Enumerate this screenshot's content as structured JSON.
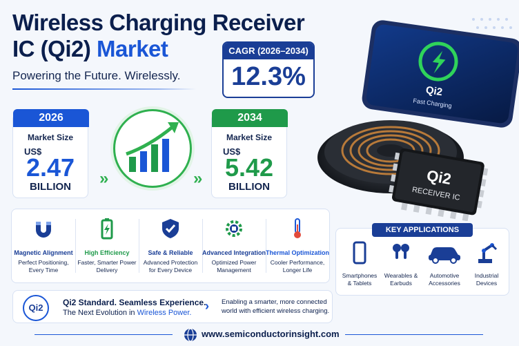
{
  "title": {
    "line1": "Wireless Charging Receiver",
    "line2_a": "IC (Qi2) ",
    "line2_b": "Market"
  },
  "tagline": "Powering the Future. Wirelessly.",
  "cagr": {
    "label": "CAGR (2026–2034)",
    "value": "12.3%"
  },
  "card_2026": {
    "year": "2026",
    "label": "Market Size",
    "currency": "US$",
    "value": "2.47",
    "unit": "BILLION",
    "color": "#1a56d6"
  },
  "card_2034": {
    "year": "2034",
    "label": "Market Size",
    "currency": "US$",
    "value": "5.42",
    "unit": "BILLION",
    "color": "#1f9a4a"
  },
  "phone": {
    "brand": "Qi2",
    "caption": "Fast Charging"
  },
  "chip": {
    "brand": "Qi2",
    "caption": "RECEIVER IC"
  },
  "features": [
    {
      "title": "Magnetic Alignment",
      "desc": "Perfect Positioning, Every Time",
      "color": "#1a3e96",
      "icon": "magnet-icon"
    },
    {
      "title": "High Efficiency",
      "desc": "Faster, Smarter Power Delivery",
      "color": "#1f9a4a",
      "icon": "battery-icon"
    },
    {
      "title": "Safe & Reliable",
      "desc": "Advanced Protection for Every Device",
      "color": "#1a3e96",
      "icon": "shield-check-icon"
    },
    {
      "title": "Advanced Integration",
      "desc": "Optimized Power Management",
      "color": "#1a3e96",
      "icon": "gear-chip-icon"
    },
    {
      "title": "Thermal Optimization",
      "desc": "Cooler Performance, Longer Life",
      "color": "#1a56d6",
      "icon": "thermometer-icon"
    }
  ],
  "applications": {
    "header": "KEY APPLICATIONS",
    "items": [
      {
        "label": "Smartphones & Tablets",
        "icon": "smartphone-icon"
      },
      {
        "label": "Wearables & Earbuds",
        "icon": "earbuds-icon"
      },
      {
        "label": "Automotive Accessories",
        "icon": "car-icon"
      },
      {
        "label": "Industrial Devices",
        "icon": "robot-arm-icon"
      }
    ]
  },
  "standard": {
    "logo": "Qi2",
    "headline": "Qi2 Standard. Seamless Experience.",
    "sub_a": "The Next Evolution in ",
    "sub_b": "Wireless Power.",
    "note": "Enabling a smarter, more connected world with efficient wireless charging."
  },
  "footer": {
    "url": "www.semiconductorinsight.com",
    "icon": "globe-icon"
  },
  "colors": {
    "navy": "#1a3e96",
    "blue": "#1a56d6",
    "green": "#1f9a4a",
    "text": "#0b1f4d"
  }
}
